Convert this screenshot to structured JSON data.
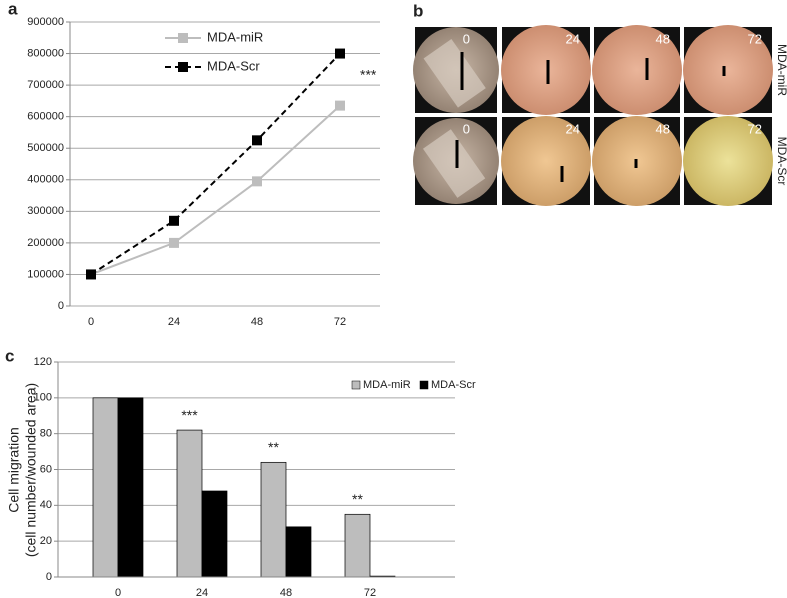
{
  "panel_labels": [
    "a",
    "b",
    "c"
  ],
  "chart_data": [
    {
      "type": "line",
      "categories": [
        "0",
        "24",
        "48",
        "72"
      ],
      "series": [
        {
          "name": "MDA-miR",
          "color": "#bdbdbd",
          "dash": false,
          "values": [
            100000,
            200000,
            395000,
            635000
          ]
        },
        {
          "name": "MDA-Scr",
          "color": "#000000",
          "dash": true,
          "values": [
            100000,
            270000,
            525000,
            800000
          ]
        }
      ],
      "ylim": [
        0,
        900000
      ],
      "yticks": [
        0,
        100000,
        200000,
        300000,
        400000,
        500000,
        600000,
        700000,
        800000,
        900000
      ],
      "grid": true,
      "legend": "top",
      "annotations": [
        null,
        null,
        null,
        "***"
      ]
    },
    {
      "type": "bar",
      "categories": [
        "0",
        "24",
        "48",
        "72"
      ],
      "ylabel": [
        "Cell migration",
        "(cell number/wounded area)"
      ],
      "series": [
        {
          "name": "MDA-miR",
          "color": "#bdbdbd",
          "values": [
            100,
            82,
            64,
            35
          ]
        },
        {
          "name": "MDA-Scr",
          "color": "#000000",
          "values": [
            100,
            48,
            28,
            0.5
          ]
        }
      ],
      "ylim": [
        0,
        120
      ],
      "yticks": [
        0,
        20,
        40,
        60,
        80,
        100,
        120
      ],
      "grid": true,
      "legend": "top-right",
      "annotations": [
        null,
        "***",
        "**",
        "**"
      ]
    }
  ],
  "image_grid": {
    "rows": [
      {
        "label": "MDA-miR",
        "times": [
          "0",
          "24",
          "48",
          "72"
        ]
      },
      {
        "label": "MDA-Scr",
        "times": [
          "0",
          "24",
          "48",
          "72"
        ]
      }
    ]
  }
}
